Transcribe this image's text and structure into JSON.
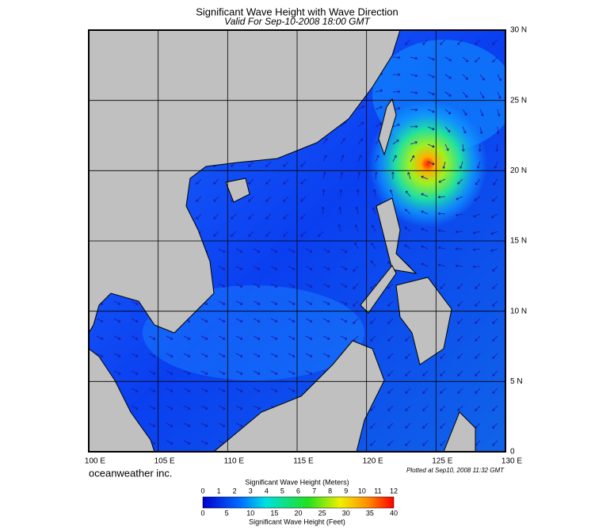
{
  "header": {
    "title": "Significant Wave Height with Wave Direction",
    "subtitle": "Valid For Sep-10-2008 18:00 GMT"
  },
  "map": {
    "lon_labels": [
      "100 E",
      "105 E",
      "110 E",
      "115 E",
      "120 E",
      "125 E",
      "130 E"
    ],
    "lat_labels": [
      "0",
      "5 N",
      "10 N",
      "15 N",
      "20 N",
      "25 N",
      "30 N"
    ]
  },
  "footer": {
    "brand": "oceanweather inc.",
    "plotted": "Plotted at Sep10, 2008 11:32 GMT"
  },
  "colorbar": {
    "top_title": "Significant Wave Height (Meters)",
    "bottom_title": "Significant Wave Height (Feet)",
    "meters": [
      0,
      1,
      2,
      3,
      4,
      5,
      6,
      7,
      8,
      9,
      10,
      11,
      12
    ],
    "feet": [
      0,
      5,
      10,
      15,
      20,
      25,
      30,
      35,
      40
    ]
  }
}
